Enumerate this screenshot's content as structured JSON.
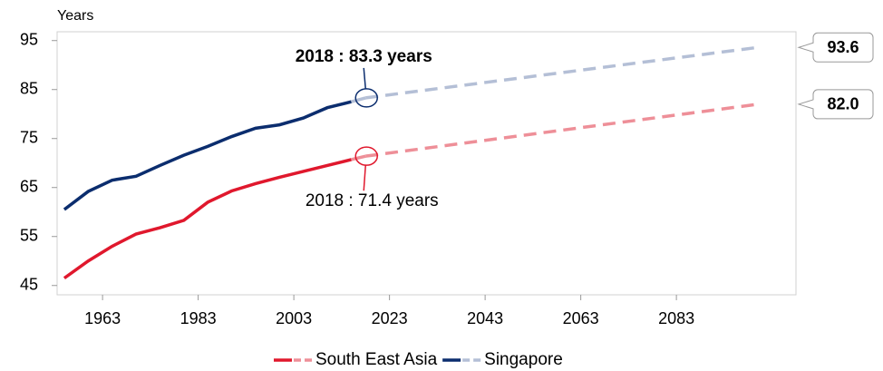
{
  "chart_data": {
    "type": "line",
    "y_label": "Years",
    "x": [
      1955,
      1960,
      1965,
      1970,
      1975,
      1980,
      1985,
      1990,
      1995,
      2000,
      2005,
      2010,
      2015,
      2018,
      2100
    ],
    "xlim": [
      1953.5,
      2108
    ],
    "xticks": [
      1963,
      1983,
      2003,
      2023,
      2043,
      2063,
      2083
    ],
    "ylim": [
      43.1,
      96.8
    ],
    "yticks": [
      45,
      55,
      65,
      75,
      85,
      95
    ],
    "legend": "bottom",
    "series": [
      {
        "name": "South East Asia",
        "color": "#e0182d",
        "projected_color": "#ee8f98",
        "values": [
          46.5,
          50,
          53,
          55.5,
          56.8,
          58.3,
          62,
          64.3,
          65.8,
          67.1,
          68.3,
          69.5,
          70.7,
          null,
          null
        ],
        "projected": [
          null,
          null,
          null,
          null,
          null,
          null,
          null,
          null,
          null,
          null,
          null,
          null,
          null,
          71.4,
          82.0
        ],
        "value_labels": [
          null,
          null,
          null,
          null,
          null,
          null,
          null,
          null,
          null,
          null,
          null,
          null,
          null,
          null,
          "82.0"
        ]
      },
      {
        "name": "Singapore",
        "color": "#0b2d6e",
        "projected_color": "#b4bfd6",
        "values": [
          60.5,
          64.2,
          66.5,
          67.3,
          69.5,
          71.6,
          73.4,
          75.4,
          77.1,
          77.8,
          79.2,
          81.3,
          82.5,
          null,
          null
        ],
        "projected": [
          null,
          null,
          null,
          null,
          null,
          null,
          null,
          null,
          null,
          null,
          null,
          null,
          null,
          83.3,
          93.6
        ],
        "value_labels": [
          null,
          null,
          null,
          null,
          null,
          null,
          null,
          null,
          null,
          null,
          null,
          null,
          null,
          null,
          "93.6"
        ]
      }
    ],
    "annotations": [
      {
        "text": "2018 : 83.3 years",
        "series": 1,
        "index": 13
      },
      {
        "text": "2018 : 71.4 years",
        "series": 0,
        "index": 13
      }
    ]
  }
}
